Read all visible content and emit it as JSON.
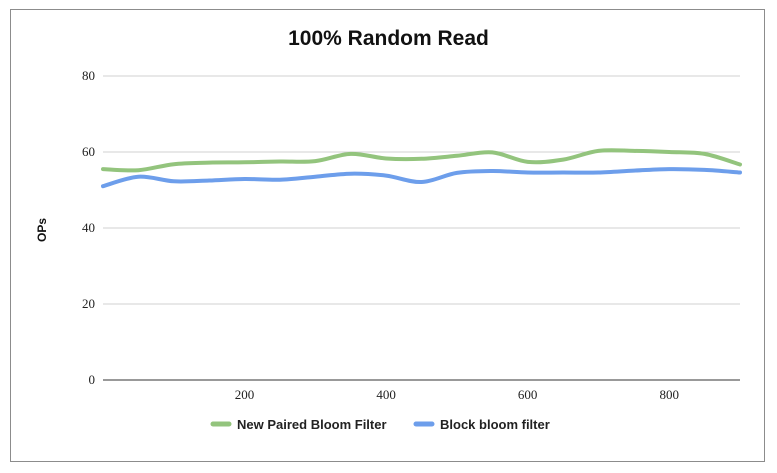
{
  "chart_data": {
    "type": "line",
    "title": "100% Random Read",
    "xlabel": "",
    "ylabel": "OPs",
    "xlim": [
      0,
      900
    ],
    "ylim": [
      0,
      80
    ],
    "xticks": [
      200,
      400,
      600,
      800
    ],
    "yticks": [
      0,
      20,
      40,
      60,
      80
    ],
    "grid": true,
    "legend_position": "bottom",
    "series": [
      {
        "name": "New Paired Bloom Filter",
        "color": "#93c47d",
        "x": [
          0,
          50,
          100,
          150,
          200,
          250,
          300,
          350,
          400,
          450,
          500,
          550,
          600,
          650,
          700,
          750,
          800,
          850,
          900
        ],
        "values": [
          55.5,
          55.2,
          56.8,
          57.2,
          57.3,
          57.5,
          57.6,
          59.5,
          58.3,
          58.2,
          59.0,
          59.9,
          57.4,
          58.0,
          60.3,
          60.3,
          60.0,
          59.5,
          56.7
        ]
      },
      {
        "name": "Block bloom filter",
        "color": "#6d9eeb",
        "x": [
          0,
          50,
          100,
          150,
          200,
          250,
          300,
          350,
          400,
          450,
          500,
          550,
          600,
          650,
          700,
          750,
          800,
          850,
          900
        ],
        "values": [
          51.0,
          53.5,
          52.3,
          52.5,
          52.9,
          52.7,
          53.5,
          54.3,
          53.8,
          52.1,
          54.5,
          55.0,
          54.6,
          54.6,
          54.6,
          55.1,
          55.5,
          55.3,
          54.6
        ]
      }
    ]
  }
}
